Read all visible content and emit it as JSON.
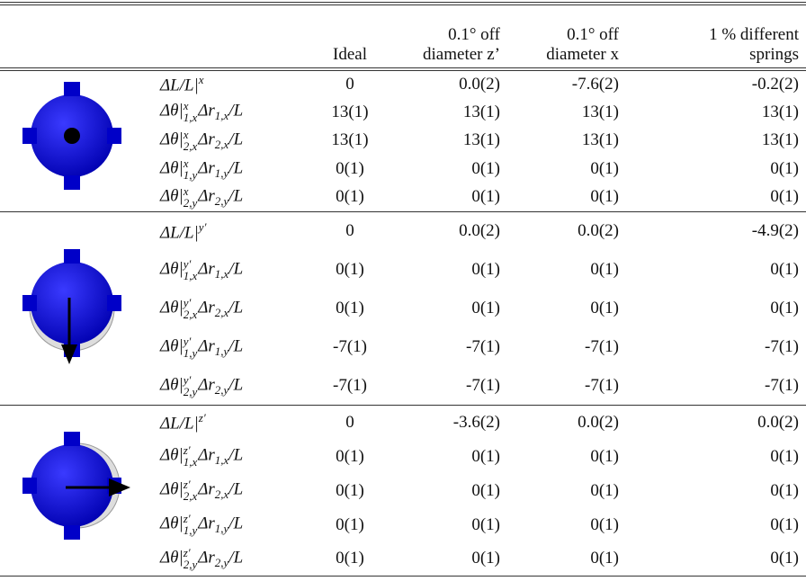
{
  "header": {
    "columns": [
      {
        "lines": [
          "Ideal"
        ]
      },
      {
        "lines": [
          "0.1° off",
          "diameter z’"
        ]
      },
      {
        "lines": [
          "0.1° off",
          "diameter x"
        ]
      },
      {
        "lines": [
          "1 % different",
          "springs"
        ]
      }
    ]
  },
  "groups": [
    {
      "rows": [
        {
          "label": [
            {
              "t": "ΔL/L|"
            },
            {
              "sup": "x"
            }
          ],
          "values": [
            "0",
            "0.0(2)",
            "-7.6(2)",
            "-0.2(2)"
          ]
        },
        {
          "label": [
            {
              "t": "Δθ|"
            },
            {
              "sup": "x",
              "sub": "1,x"
            },
            {
              "t": "Δr"
            },
            {
              "sub": "1,x"
            },
            {
              "t": "/L"
            }
          ],
          "values": [
            "13(1)",
            "13(1)",
            "13(1)",
            "13(1)"
          ]
        },
        {
          "label": [
            {
              "t": "Δθ|"
            },
            {
              "sup": "x",
              "sub": "2,x"
            },
            {
              "t": "Δr"
            },
            {
              "sub": "2,x"
            },
            {
              "t": "/L"
            }
          ],
          "values": [
            "13(1)",
            "13(1)",
            "13(1)",
            "13(1)"
          ]
        },
        {
          "label": [
            {
              "t": "Δθ|"
            },
            {
              "sup": "x",
              "sub": "1,y"
            },
            {
              "t": "Δr"
            },
            {
              "sub": "1,y"
            },
            {
              "t": "/L"
            }
          ],
          "values": [
            "0(1)",
            "0(1)",
            "0(1)",
            "0(1)"
          ]
        },
        {
          "label": [
            {
              "t": "Δθ|"
            },
            {
              "sup": "x",
              "sub": "2,y"
            },
            {
              "t": "Δr"
            },
            {
              "sub": "2,y"
            },
            {
              "t": "/L"
            }
          ],
          "values": [
            "0(1)",
            "0(1)",
            "0(1)",
            "0(1)"
          ]
        }
      ]
    },
    {
      "rows": [
        {
          "label": [
            {
              "t": "ΔL/L|"
            },
            {
              "sup": "y′"
            }
          ],
          "values": [
            "0",
            "0.0(2)",
            "0.0(2)",
            "-4.9(2)"
          ]
        },
        {
          "label": [
            {
              "t": "Δθ|"
            },
            {
              "sup": "y′",
              "sub": "1,x"
            },
            {
              "t": "Δr"
            },
            {
              "sub": "1,x"
            },
            {
              "t": "/L"
            }
          ],
          "values": [
            "0(1)",
            "0(1)",
            "0(1)",
            "0(1)"
          ]
        },
        {
          "label": [
            {
              "t": "Δθ|"
            },
            {
              "sup": "y′",
              "sub": "2,x"
            },
            {
              "t": "Δr"
            },
            {
              "sub": "2,x"
            },
            {
              "t": "/L"
            }
          ],
          "values": [
            "0(1)",
            "0(1)",
            "0(1)",
            "0(1)"
          ]
        },
        {
          "label": [
            {
              "t": "Δθ|"
            },
            {
              "sup": "y′",
              "sub": "1,y"
            },
            {
              "t": "Δr"
            },
            {
              "sub": "1,y"
            },
            {
              "t": "/L"
            }
          ],
          "values": [
            "-7(1)",
            "-7(1)",
            "-7(1)",
            "-7(1)"
          ]
        },
        {
          "label": [
            {
              "t": "Δθ|"
            },
            {
              "sup": "y′",
              "sub": "2,y"
            },
            {
              "t": "Δr"
            },
            {
              "sub": "2,y"
            },
            {
              "t": "/L"
            }
          ],
          "values": [
            "-7(1)",
            "-7(1)",
            "-7(1)",
            "-7(1)"
          ]
        }
      ]
    },
    {
      "rows": [
        {
          "label": [
            {
              "t": "ΔL/L|"
            },
            {
              "sup": "z′"
            }
          ],
          "values": [
            "0",
            "-3.6(2)",
            "0.0(2)",
            "0.0(2)"
          ]
        },
        {
          "label": [
            {
              "t": "Δθ|"
            },
            {
              "sup": "z′",
              "sub": "1,x"
            },
            {
              "t": "Δr"
            },
            {
              "sub": "1,x"
            },
            {
              "t": "/L"
            }
          ],
          "values": [
            "0(1)",
            "0(1)",
            "0(1)",
            "0(1)"
          ]
        },
        {
          "label": [
            {
              "t": "Δθ|"
            },
            {
              "sup": "z′",
              "sub": "2,x"
            },
            {
              "t": "Δr"
            },
            {
              "sub": "2,x"
            },
            {
              "t": "/L"
            }
          ],
          "values": [
            "0(1)",
            "0(1)",
            "0(1)",
            "0(1)"
          ]
        },
        {
          "label": [
            {
              "t": "Δθ|"
            },
            {
              "sup": "z′",
              "sub": "1,y"
            },
            {
              "t": "Δr"
            },
            {
              "sub": "1,y"
            },
            {
              "t": "/L"
            }
          ],
          "values": [
            "0(1)",
            "0(1)",
            "0(1)",
            "0(1)"
          ]
        },
        {
          "label": [
            {
              "t": "Δθ|"
            },
            {
              "sup": "z′",
              "sub": "2,y"
            },
            {
              "t": "Δr"
            },
            {
              "sub": "2,y"
            },
            {
              "t": "/L"
            }
          ],
          "values": [
            "0(1)",
            "0(1)",
            "0(1)",
            "0(1)"
          ]
        }
      ]
    }
  ]
}
